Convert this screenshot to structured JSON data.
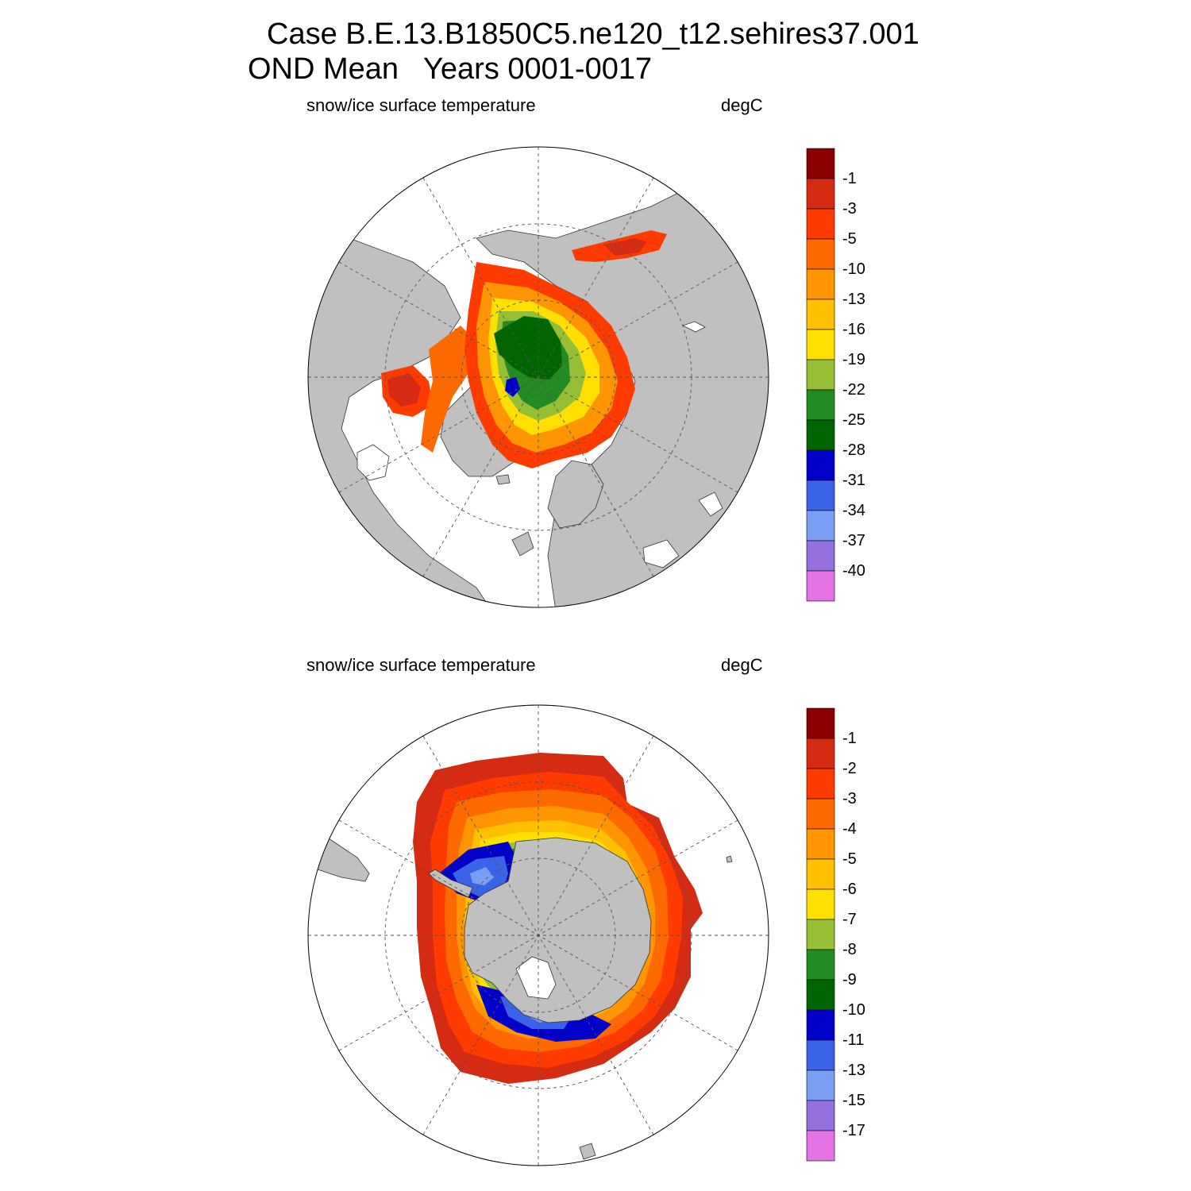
{
  "figure": {
    "title_line1": "Case B.E.13.B1850C5.ne120_t12.sehires37.001",
    "title_line2": "OND Mean   Years 0001-0017"
  },
  "panels": [
    {
      "hemisphere": "north",
      "variable_label": "snow/ice surface temperature",
      "units_label": "degC",
      "colorbar": {
        "colors": [
          "#8b0000",
          "#d42b12",
          "#ff3b00",
          "#ff6a00",
          "#ff9500",
          "#ffc000",
          "#ffe000",
          "#97bf36",
          "#228b22",
          "#006400",
          "#0000c8",
          "#3b63e8",
          "#7a9ef2",
          "#9370db",
          "#e673e6"
        ],
        "labels": [
          "-1",
          "-3",
          "-5",
          "-10",
          "-13",
          "-16",
          "-19",
          "-22",
          "-25",
          "-28",
          "-31",
          "-34",
          "-37",
          "-40"
        ]
      }
    },
    {
      "hemisphere": "south",
      "variable_label": "snow/ice surface temperature",
      "units_label": "degC",
      "colorbar": {
        "colors": [
          "#8b0000",
          "#d42b12",
          "#ff3b00",
          "#ff6a00",
          "#ff9500",
          "#ffc000",
          "#ffe000",
          "#97bf36",
          "#228b22",
          "#006400",
          "#0000c8",
          "#3b63e8",
          "#7a9ef2",
          "#9370db",
          "#e673e6"
        ],
        "labels": [
          "-1",
          "-2",
          "-3",
          "-4",
          "-5",
          "-6",
          "-7",
          "-8",
          "-9",
          "-10",
          "-11",
          "-13",
          "-15",
          "-17"
        ]
      }
    }
  ],
  "map_colors": {
    "land": "#c0c0c0",
    "ocean": "#ffffff",
    "grid": "#555555"
  }
}
